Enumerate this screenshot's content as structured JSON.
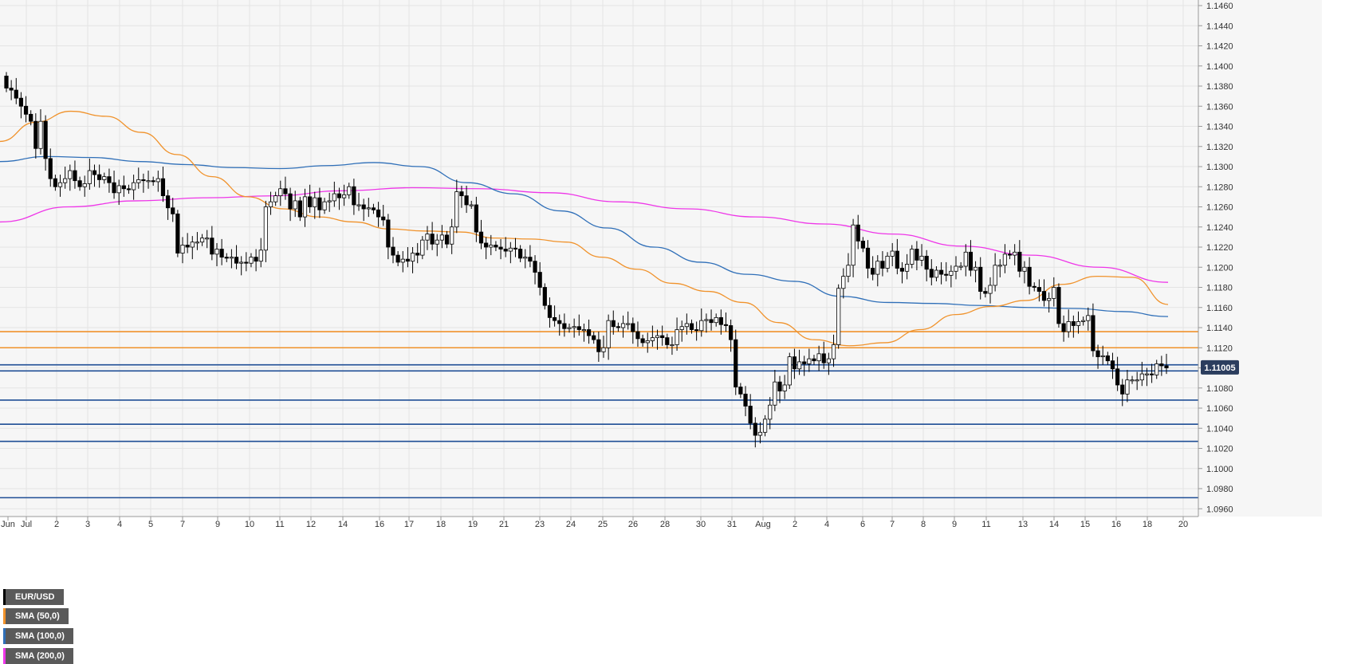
{
  "chart_data": {
    "type": "candlestick",
    "symbol": "EUR/USD",
    "legend": [
      {
        "label": "EUR/USD",
        "color": "#000000"
      },
      {
        "label": "SMA (50,0)",
        "color": "#f0922b"
      },
      {
        "label": "SMA (100,0)",
        "color": "#2f6fb8"
      },
      {
        "label": "SMA (200,0)",
        "color": "#ee36e8"
      }
    ],
    "ylim": [
      1.095,
      1.147
    ],
    "y_ticks": [
      "1.1460",
      "1.1440",
      "1.1420",
      "1.1400",
      "1.1380",
      "1.1360",
      "1.1340",
      "1.1320",
      "1.1300",
      "1.1280",
      "1.1260",
      "1.1240",
      "1.1220",
      "1.1200",
      "1.1180",
      "1.1160",
      "1.1140",
      "1.1120",
      "1.1100",
      "1.1080",
      "1.1060",
      "1.1040",
      "1.1020",
      "1.1000",
      "1.0980",
      "1.0960"
    ],
    "x_ticks": [
      "Jun",
      "Jul",
      "2",
      "3",
      "4",
      "5",
      "7",
      "9",
      "10",
      "11",
      "12",
      "14",
      "16",
      "17",
      "18",
      "19",
      "21",
      "23",
      "24",
      "25",
      "26",
      "28",
      "30",
      "31",
      "Aug",
      "2",
      "4",
      "6",
      "7",
      "8",
      "9",
      "11",
      "13",
      "14",
      "15",
      "16",
      "18",
      "20"
    ],
    "current_price": "1.11005",
    "horizontal_levels": [
      {
        "value": 1.1136,
        "color": "#f0922b"
      },
      {
        "value": 1.112,
        "color": "#f0922b"
      },
      {
        "value": 1.1103,
        "color": "#1f4e95"
      },
      {
        "value": 1.1097,
        "color": "#1f4e95"
      },
      {
        "value": 1.1068,
        "color": "#1f4e95"
      },
      {
        "value": 1.1044,
        "color": "#1f4e95"
      },
      {
        "value": 1.1027,
        "color": "#1f4e95"
      },
      {
        "value": 1.0971,
        "color": "#1f4e95"
      }
    ],
    "candles": {
      "open": [
        1.139,
        1.1378,
        1.1376,
        1.1368,
        1.136,
        1.1352,
        1.1345,
        1.1318,
        1.1345,
        1.1308,
        1.1288,
        1.128,
        1.1284,
        1.1288,
        1.1296,
        1.1286,
        1.128,
        1.1283,
        1.1296,
        1.1292,
        1.1287,
        1.129,
        1.1284,
        1.1274,
        1.1281,
        1.1278,
        1.1277,
        1.1284,
        1.1287,
        1.1286,
        1.1286,
        1.1285,
        1.1288,
        1.1271,
        1.1259,
        1.1253,
        1.1214,
        1.1222,
        1.122,
        1.1225,
        1.1225,
        1.1229,
        1.1229,
        1.1213,
        1.1218,
        1.121,
        1.1209,
        1.121,
        1.1204,
        1.1205,
        1.1204,
        1.121,
        1.1206,
        1.1217,
        1.126,
        1.1265,
        1.1271,
        1.1278,
        1.1273,
        1.1258,
        1.1266,
        1.125,
        1.127,
        1.126,
        1.1269,
        1.1257,
        1.1265,
        1.1266,
        1.1273,
        1.1269,
        1.1272,
        1.128,
        1.1262,
        1.1262,
        1.1258,
        1.1259,
        1.1257,
        1.125,
        1.1247,
        1.122,
        1.1212,
        1.1205,
        1.1208,
        1.1206,
        1.1214,
        1.1212,
        1.1227,
        1.1233,
        1.1223,
        1.1227,
        1.1232,
        1.1223,
        1.124,
        1.1275,
        1.1271,
        1.1262,
        1.1262,
        1.1235,
        1.1224,
        1.122,
        1.1222,
        1.122,
        1.1218,
        1.1216,
        1.1219,
        1.1218,
        1.1209,
        1.121,
        1.1206,
        1.1195,
        1.118,
        1.1162,
        1.115,
        1.1147,
        1.1144,
        1.1139,
        1.114,
        1.1141,
        1.1138,
        1.1138,
        1.1132,
        1.1128,
        1.1116,
        1.112,
        1.1147,
        1.1141,
        1.114,
        1.1144,
        1.1144,
        1.1136,
        1.1129,
        1.1125,
        1.1127,
        1.113,
        1.1132,
        1.113,
        1.1123,
        1.1123,
        1.1138,
        1.1141,
        1.1144,
        1.1138,
        1.1137,
        1.1147,
        1.1148,
        1.1145,
        1.115,
        1.1143,
        1.1142,
        1.1128,
        1.1081,
        1.1074,
        1.1062,
        1.1045,
        1.1033,
        1.1036,
        1.1049,
        1.1063,
        1.1086,
        1.1077,
        1.1083,
        1.1111,
        1.1099,
        1.1106,
        1.1104,
        1.1109,
        1.1107,
        1.1114,
        1.1105,
        1.1109,
        1.1123,
        1.1179,
        1.1191,
        1.1202,
        1.1242,
        1.1226,
        1.1219,
        1.1199,
        1.1193,
        1.1206,
        1.1199,
        1.1211,
        1.1216,
        1.1199,
        1.1196,
        1.1203,
        1.1218,
        1.1207,
        1.1211,
        1.1198,
        1.119,
        1.1197,
        1.1193,
        1.1192,
        1.1196,
        1.1201,
        1.1201,
        1.1215,
        1.1197,
        1.12,
        1.1176,
        1.1174,
        1.1182,
        1.1202,
        1.1202,
        1.1213,
        1.1212,
        1.1215,
        1.1196,
        1.12,
        1.1181,
        1.118,
        1.1176,
        1.1167,
        1.1169,
        1.118,
        1.1144,
        1.1136,
        1.1146,
        1.1142,
        1.1146,
        1.1147,
        1.1152,
        1.1117,
        1.1111,
        1.1112,
        1.1107,
        1.1099,
        1.1083,
        1.1074,
        1.1088,
        1.1088,
        1.1088,
        1.1094,
        1.1094,
        1.1093,
        1.1104,
        1.1102
      ],
      "close": [
        1.1378,
        1.1376,
        1.1368,
        1.136,
        1.1352,
        1.1345,
        1.1318,
        1.1345,
        1.1308,
        1.1288,
        1.128,
        1.1284,
        1.1288,
        1.1296,
        1.1286,
        1.128,
        1.1283,
        1.1296,
        1.1292,
        1.1287,
        1.129,
        1.1284,
        1.1274,
        1.1281,
        1.1278,
        1.1277,
        1.1284,
        1.1287,
        1.1286,
        1.1286,
        1.1285,
        1.1288,
        1.1271,
        1.1259,
        1.1253,
        1.1214,
        1.1222,
        1.122,
        1.1225,
        1.1225,
        1.1229,
        1.1229,
        1.1213,
        1.1218,
        1.121,
        1.1209,
        1.121,
        1.1204,
        1.1205,
        1.1204,
        1.121,
        1.1206,
        1.1217,
        1.126,
        1.1265,
        1.1271,
        1.1278,
        1.1273,
        1.1258,
        1.1266,
        1.125,
        1.127,
        1.126,
        1.1269,
        1.1257,
        1.1265,
        1.1266,
        1.1273,
        1.1269,
        1.1272,
        1.128,
        1.1262,
        1.1262,
        1.1258,
        1.1259,
        1.1257,
        1.125,
        1.1247,
        1.122,
        1.1212,
        1.1205,
        1.1208,
        1.1206,
        1.1214,
        1.1212,
        1.1227,
        1.1233,
        1.1223,
        1.1227,
        1.1232,
        1.1223,
        1.124,
        1.1275,
        1.1271,
        1.1262,
        1.1262,
        1.1235,
        1.1224,
        1.122,
        1.1222,
        1.122,
        1.1218,
        1.1216,
        1.1219,
        1.1218,
        1.1209,
        1.121,
        1.1206,
        1.1195,
        1.118,
        1.1162,
        1.115,
        1.1147,
        1.1144,
        1.1139,
        1.114,
        1.1141,
        1.1138,
        1.1138,
        1.1132,
        1.1128,
        1.1116,
        1.112,
        1.1147,
        1.1141,
        1.114,
        1.1144,
        1.1144,
        1.1136,
        1.1129,
        1.1125,
        1.1127,
        1.113,
        1.1132,
        1.113,
        1.1123,
        1.1123,
        1.1138,
        1.1141,
        1.1144,
        1.1138,
        1.1137,
        1.1147,
        1.1148,
        1.1145,
        1.115,
        1.1143,
        1.1142,
        1.1128,
        1.1081,
        1.1074,
        1.1062,
        1.1045,
        1.1033,
        1.1036,
        1.1049,
        1.1063,
        1.1086,
        1.1077,
        1.1083,
        1.1111,
        1.1099,
        1.1106,
        1.1104,
        1.1109,
        1.1107,
        1.1114,
        1.1105,
        1.1109,
        1.1123,
        1.1179,
        1.1191,
        1.1202,
        1.1242,
        1.1226,
        1.1219,
        1.1199,
        1.1193,
        1.1206,
        1.1199,
        1.1211,
        1.1216,
        1.1199,
        1.1196,
        1.1203,
        1.1218,
        1.1207,
        1.1211,
        1.1198,
        1.119,
        1.1197,
        1.1193,
        1.1192,
        1.1196,
        1.1201,
        1.1201,
        1.1215,
        1.1197,
        1.12,
        1.1176,
        1.1174,
        1.1182,
        1.1202,
        1.1202,
        1.1213,
        1.1212,
        1.1215,
        1.1196,
        1.12,
        1.1181,
        1.118,
        1.1176,
        1.1167,
        1.1169,
        1.118,
        1.1144,
        1.1136,
        1.1146,
        1.1142,
        1.1146,
        1.1147,
        1.1152,
        1.1117,
        1.1111,
        1.1112,
        1.1107,
        1.1099,
        1.1083,
        1.1074,
        1.1088,
        1.1088,
        1.1088,
        1.1094,
        1.1094,
        1.1093,
        1.1104,
        1.1102,
        1.11
      ]
    },
    "sma_50": [
      1.1325,
      1.1344,
      1.1355,
      1.135,
      1.1334,
      1.1312,
      1.129,
      1.127,
      1.1258,
      1.125,
      1.1245,
      1.1238,
      1.1236,
      1.1235,
      1.1229,
      1.1228,
      1.1225,
      1.121,
      1.1198,
      1.1184,
      1.1176,
      1.1165,
      1.1145,
      1.1128,
      1.1122,
      1.1125,
      1.1138,
      1.1153,
      1.1161,
      1.1167,
      1.1183,
      1.1191,
      1.119,
      1.1163
    ],
    "sma_100": [
      1.1305,
      1.131,
      1.1309,
      1.1305,
      1.1302,
      1.1299,
      1.1298,
      1.1301,
      1.1304,
      1.13,
      1.1284,
      1.1273,
      1.1256,
      1.1239,
      1.122,
      1.1205,
      1.1193,
      1.1186,
      1.1171,
      1.1165,
      1.1164,
      1.1162,
      1.116,
      1.1159,
      1.1156,
      1.1151
    ],
    "sma_200": [
      1.1245,
      1.126,
      1.1266,
      1.1269,
      1.1271,
      1.1276,
      1.1279,
      1.1278,
      1.1274,
      1.1265,
      1.1258,
      1.125,
      1.1243,
      1.1233,
      1.1221,
      1.1212,
      1.12,
      1.1185
    ]
  }
}
